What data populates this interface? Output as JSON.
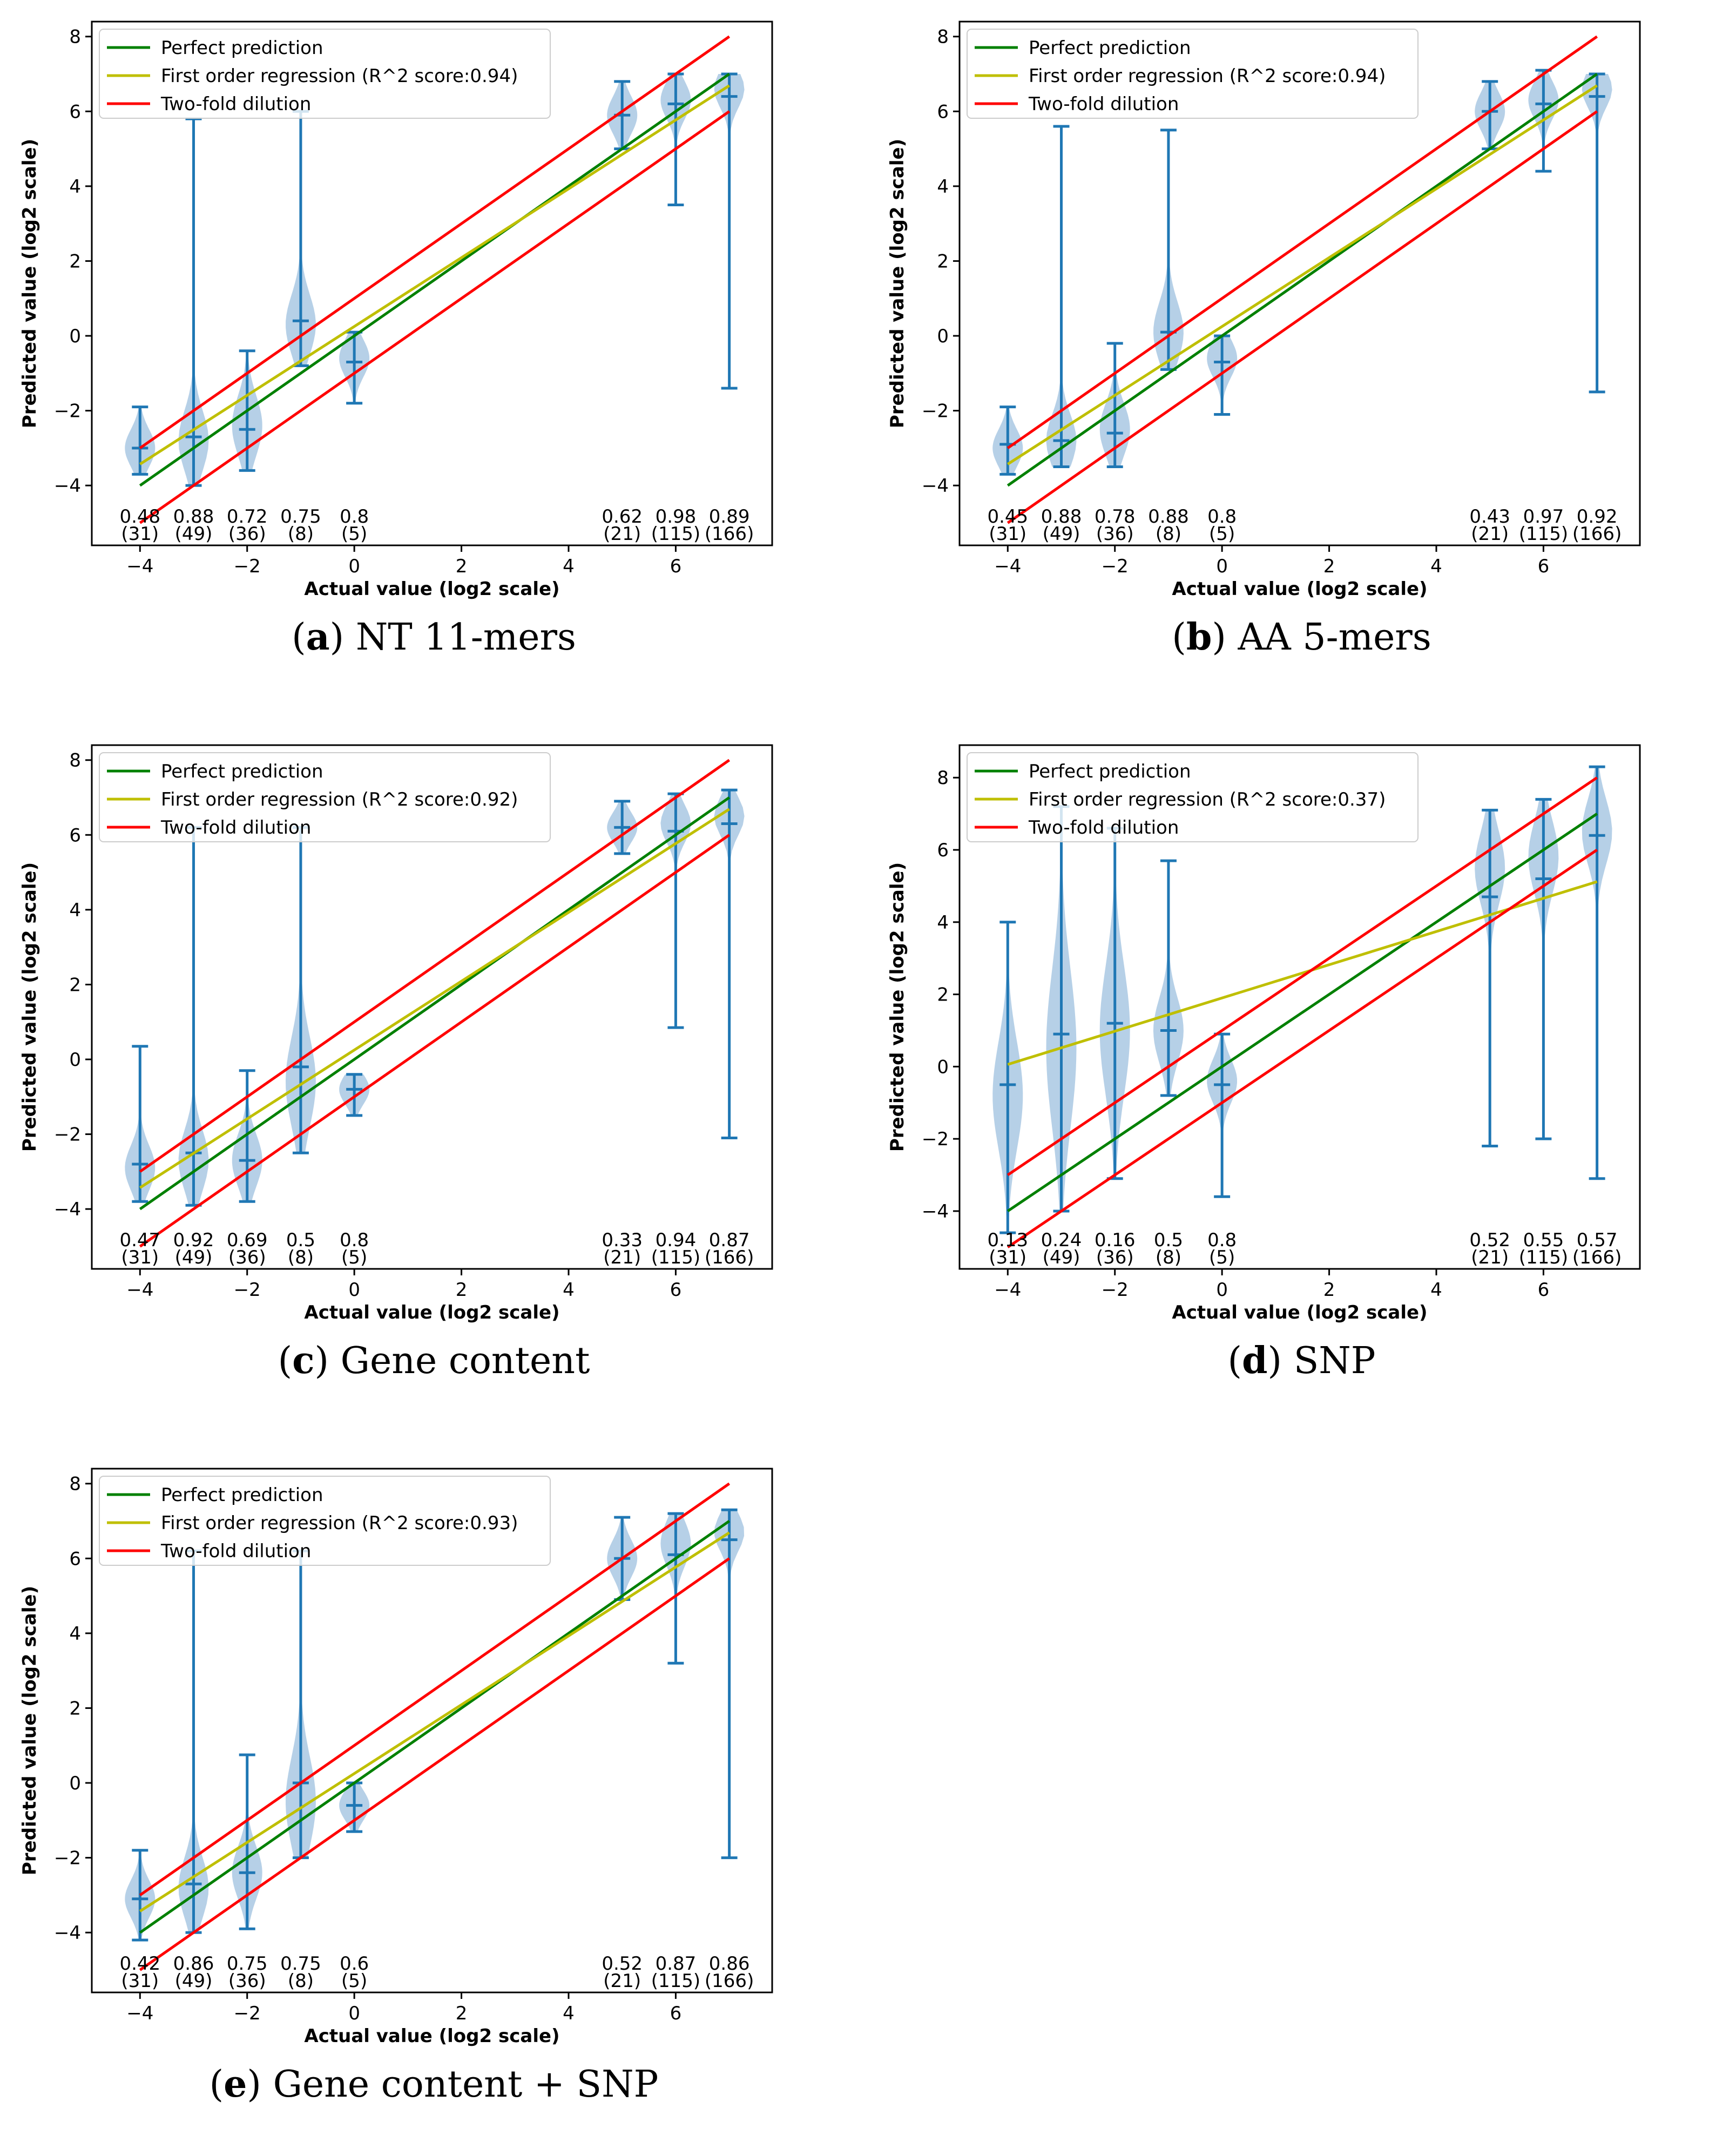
{
  "chart_data": [
    {
      "type": "violin",
      "panel_letter": "a",
      "caption_text": "NT 11-mers",
      "xlabel": "Actual value (log2 scale)",
      "ylabel": "Predicted value (log2 scale)",
      "xlim": [
        -4.9,
        7.8
      ],
      "ylim": [
        -5.6,
        8.4
      ],
      "xticks": [
        -4,
        -2,
        0,
        2,
        4,
        6
      ],
      "yticks": [
        -4,
        -2,
        0,
        2,
        4,
        6,
        8
      ],
      "legend": {
        "position": "top-left",
        "entries": [
          "Perfect prediction",
          "First order regression (R^2 score:0.94)",
          "Two-fold dilution"
        ]
      },
      "regression": {
        "intercept": 0.25,
        "slope": 0.92
      },
      "violins": [
        {
          "x": -4,
          "min": -3.7,
          "max": -1.9,
          "median": -3.0,
          "center": -3.0,
          "spread": 0.5,
          "label_top": "0.48",
          "label_bottom": "(31)"
        },
        {
          "x": -3,
          "min": -4.0,
          "max": 5.8,
          "median": -2.7,
          "center": -2.8,
          "spread": 0.8,
          "label_top": "0.88",
          "label_bottom": "(49)"
        },
        {
          "x": -2,
          "min": -3.6,
          "max": -0.4,
          "median": -2.5,
          "center": -2.4,
          "spread": 0.8,
          "label_top": "0.72",
          "label_bottom": "(36)"
        },
        {
          "x": -1,
          "min": -0.8,
          "max": 6.0,
          "median": 0.4,
          "center": 0.3,
          "spread": 0.8,
          "label_top": "0.75",
          "label_bottom": "(8)"
        },
        {
          "x": 0,
          "min": -1.8,
          "max": 0.1,
          "median": -0.7,
          "center": -0.6,
          "spread": 0.5,
          "label_top": "0.8",
          "label_bottom": "(5)"
        },
        {
          "x": 5,
          "min": 5.0,
          "max": 6.8,
          "median": 5.9,
          "center": 5.9,
          "spread": 0.5,
          "label_top": "0.62",
          "label_bottom": "(21)"
        },
        {
          "x": 6,
          "min": 3.5,
          "max": 7.0,
          "median": 6.2,
          "center": 6.3,
          "spread": 0.5,
          "label_top": "0.98",
          "label_bottom": "(115)"
        },
        {
          "x": 7,
          "min": -1.4,
          "max": 7.0,
          "median": 6.4,
          "center": 6.6,
          "spread": 0.5,
          "label_top": "0.89",
          "label_bottom": "(166)"
        }
      ]
    },
    {
      "type": "violin",
      "panel_letter": "b",
      "caption_text": "AA 5-mers",
      "xlabel": "Actual value (log2 scale)",
      "ylabel": "Predicted value (log2 scale)",
      "xlim": [
        -4.9,
        7.8
      ],
      "ylim": [
        -5.6,
        8.4
      ],
      "xticks": [
        -4,
        -2,
        0,
        2,
        4,
        6
      ],
      "yticks": [
        -4,
        -2,
        0,
        2,
        4,
        6,
        8
      ],
      "legend": {
        "position": "top-left",
        "entries": [
          "Perfect prediction",
          "First order regression (R^2 score:0.94)",
          "Two-fold dilution"
        ]
      },
      "regression": {
        "intercept": 0.25,
        "slope": 0.92
      },
      "violins": [
        {
          "x": -4,
          "min": -3.7,
          "max": -1.9,
          "median": -2.9,
          "center": -3.0,
          "spread": 0.5,
          "label_top": "0.45",
          "label_bottom": "(31)"
        },
        {
          "x": -3,
          "min": -3.5,
          "max": 5.6,
          "median": -2.8,
          "center": -2.8,
          "spread": 0.7,
          "label_top": "0.88",
          "label_bottom": "(49)"
        },
        {
          "x": -2,
          "min": -3.5,
          "max": -0.2,
          "median": -2.6,
          "center": -2.5,
          "spread": 0.7,
          "label_top": "0.78",
          "label_bottom": "(36)"
        },
        {
          "x": -1,
          "min": -0.9,
          "max": 5.5,
          "median": 0.1,
          "center": 0.1,
          "spread": 0.8,
          "label_top": "0.88",
          "label_bottom": "(8)"
        },
        {
          "x": 0,
          "min": -2.1,
          "max": 0.0,
          "median": -0.7,
          "center": -0.6,
          "spread": 0.5,
          "label_top": "0.8",
          "label_bottom": "(5)"
        },
        {
          "x": 5,
          "min": 5.0,
          "max": 6.8,
          "median": 6.0,
          "center": 6.0,
          "spread": 0.5,
          "label_top": "0.43",
          "label_bottom": "(21)"
        },
        {
          "x": 6,
          "min": 4.4,
          "max": 7.1,
          "median": 6.2,
          "center": 6.3,
          "spread": 0.5,
          "label_top": "0.97",
          "label_bottom": "(115)"
        },
        {
          "x": 7,
          "min": -1.5,
          "max": 7.0,
          "median": 6.4,
          "center": 6.6,
          "spread": 0.5,
          "label_top": "0.92",
          "label_bottom": "(166)"
        }
      ]
    },
    {
      "type": "violin",
      "panel_letter": "c",
      "caption_text": "Gene content",
      "xlabel": "Actual value (log2 scale)",
      "ylabel": "Predicted value (log2 scale)",
      "xlim": [
        -4.9,
        7.8
      ],
      "ylim": [
        -5.6,
        8.4
      ],
      "xticks": [
        -4,
        -2,
        0,
        2,
        4,
        6
      ],
      "yticks": [
        -4,
        -2,
        0,
        2,
        4,
        6,
        8
      ],
      "legend": {
        "position": "top-left",
        "entries": [
          "Perfect prediction",
          "First order regression (R^2 score:0.92)",
          "Two-fold dilution"
        ]
      },
      "regression": {
        "intercept": 0.25,
        "slope": 0.92
      },
      "violins": [
        {
          "x": -4,
          "min": -3.8,
          "max": 0.35,
          "median": -2.8,
          "center": -2.9,
          "spread": 0.6,
          "label_top": "0.47",
          "label_bottom": "(31)"
        },
        {
          "x": -3,
          "min": -3.9,
          "max": 6.2,
          "median": -2.5,
          "center": -2.7,
          "spread": 0.8,
          "label_top": "0.92",
          "label_bottom": "(49)"
        },
        {
          "x": -2,
          "min": -3.8,
          "max": -0.3,
          "median": -2.7,
          "center": -2.7,
          "spread": 0.7,
          "label_top": "0.69",
          "label_bottom": "(36)"
        },
        {
          "x": -1,
          "min": -2.5,
          "max": 6.2,
          "median": -0.2,
          "center": -0.6,
          "spread": 1.2,
          "label_top": "0.5",
          "label_bottom": "(8)"
        },
        {
          "x": 0,
          "min": -1.5,
          "max": -0.4,
          "median": -0.8,
          "center": -0.8,
          "spread": 0.4,
          "label_top": "0.8",
          "label_bottom": "(5)"
        },
        {
          "x": 5,
          "min": 5.5,
          "max": 6.9,
          "median": 6.2,
          "center": 6.2,
          "spread": 0.4,
          "label_top": "0.33",
          "label_bottom": "(21)"
        },
        {
          "x": 6,
          "min": 0.85,
          "max": 7.1,
          "median": 6.1,
          "center": 6.3,
          "spread": 0.5,
          "label_top": "0.94",
          "label_bottom": "(115)"
        },
        {
          "x": 7,
          "min": -2.1,
          "max": 7.2,
          "median": 6.3,
          "center": 6.5,
          "spread": 0.5,
          "label_top": "0.87",
          "label_bottom": "(166)"
        }
      ]
    },
    {
      "type": "violin",
      "panel_letter": "d",
      "caption_text": "SNP",
      "xlabel": "Actual value (log2 scale)",
      "ylabel": "Predicted value (log2 scale)",
      "xlim": [
        -4.9,
        7.8
      ],
      "ylim": [
        -5.6,
        8.9
      ],
      "xticks": [
        -4,
        -2,
        0,
        2,
        4,
        6
      ],
      "yticks": [
        -4,
        -2,
        0,
        2,
        4,
        6,
        8
      ],
      "legend": {
        "position": "top-left",
        "entries": [
          "Perfect prediction",
          "First order regression (R^2 score:0.37)",
          "Two-fold dilution"
        ]
      },
      "regression": {
        "intercept": 1.9,
        "slope": 0.46
      },
      "violins": [
        {
          "x": -4,
          "min": -4.6,
          "max": 4.0,
          "median": -0.5,
          "center": -0.8,
          "spread": 1.5,
          "label_top": "0.13",
          "label_bottom": "(31)"
        },
        {
          "x": -3,
          "min": -4.0,
          "max": 7.2,
          "median": 0.9,
          "center": 0.5,
          "spread": 2.2,
          "label_top": "0.24",
          "label_bottom": "(49)"
        },
        {
          "x": -2,
          "min": -3.1,
          "max": 6.6,
          "median": 1.2,
          "center": 1.0,
          "spread": 1.8,
          "label_top": "0.16",
          "label_bottom": "(36)"
        },
        {
          "x": -1,
          "min": -0.8,
          "max": 5.7,
          "median": 1.0,
          "center": 1.0,
          "spread": 0.9,
          "label_top": "0.5",
          "label_bottom": "(8)"
        },
        {
          "x": 0,
          "min": -3.6,
          "max": 0.9,
          "median": -0.5,
          "center": -0.4,
          "spread": 0.6,
          "label_top": "0.8",
          "label_bottom": "(5)"
        },
        {
          "x": 5,
          "min": -2.2,
          "max": 7.1,
          "median": 4.7,
          "center": 5.5,
          "spread": 1.0,
          "label_top": "0.52",
          "label_bottom": "(21)"
        },
        {
          "x": 6,
          "min": -2.0,
          "max": 7.4,
          "median": 5.2,
          "center": 5.8,
          "spread": 1.0,
          "label_top": "0.55",
          "label_bottom": "(115)"
        },
        {
          "x": 7,
          "min": -3.1,
          "max": 8.3,
          "median": 6.4,
          "center": 6.5,
          "spread": 0.9,
          "label_top": "0.57",
          "label_bottom": "(166)"
        }
      ]
    },
    {
      "type": "violin",
      "panel_letter": "e",
      "caption_text": "Gene content + SNP",
      "xlabel": "Actual value (log2 scale)",
      "ylabel": "Predicted value (log2 scale)",
      "xlim": [
        -4.9,
        7.8
      ],
      "ylim": [
        -5.6,
        8.4
      ],
      "xticks": [
        -4,
        -2,
        0,
        2,
        4,
        6
      ],
      "yticks": [
        -4,
        -2,
        0,
        2,
        4,
        6,
        8
      ],
      "legend": {
        "position": "top-left",
        "entries": [
          "Perfect prediction",
          "First order regression (R^2 score:0.93)",
          "Two-fold dilution"
        ]
      },
      "regression": {
        "intercept": 0.25,
        "slope": 0.92
      },
      "violins": [
        {
          "x": -4,
          "min": -4.2,
          "max": -1.8,
          "median": -3.1,
          "center": -3.1,
          "spread": 0.5,
          "label_top": "0.42",
          "label_bottom": "(31)"
        },
        {
          "x": -3,
          "min": -4.0,
          "max": 6.2,
          "median": -2.7,
          "center": -2.8,
          "spread": 0.8,
          "label_top": "0.86",
          "label_bottom": "(49)"
        },
        {
          "x": -2,
          "min": -3.9,
          "max": 0.75,
          "median": -2.4,
          "center": -2.4,
          "spread": 0.7,
          "label_top": "0.75",
          "label_bottom": "(36)"
        },
        {
          "x": -1,
          "min": -2.0,
          "max": 6.2,
          "median": 0.0,
          "center": -0.5,
          "spread": 1.2,
          "label_top": "0.75",
          "label_bottom": "(8)"
        },
        {
          "x": 0,
          "min": -1.3,
          "max": 0.0,
          "median": -0.6,
          "center": -0.6,
          "spread": 0.4,
          "label_top": "0.6",
          "label_bottom": "(5)"
        },
        {
          "x": 5,
          "min": 4.9,
          "max": 7.1,
          "median": 6.0,
          "center": 6.0,
          "spread": 0.5,
          "label_top": "0.52",
          "label_bottom": "(21)"
        },
        {
          "x": 6,
          "min": 3.2,
          "max": 7.2,
          "median": 6.1,
          "center": 6.4,
          "spread": 0.6,
          "label_top": "0.87",
          "label_bottom": "(115)"
        },
        {
          "x": 7,
          "min": -2.0,
          "max": 7.3,
          "median": 6.5,
          "center": 6.7,
          "spread": 0.5,
          "label_top": "0.86",
          "label_bottom": "(166)"
        }
      ]
    }
  ],
  "colors": {
    "perfect": "#008000",
    "regression": "#bfbf00",
    "dilution": "#ff0000",
    "violin_fill": "#a9c8e3",
    "violin_line": "#1f77b4"
  }
}
